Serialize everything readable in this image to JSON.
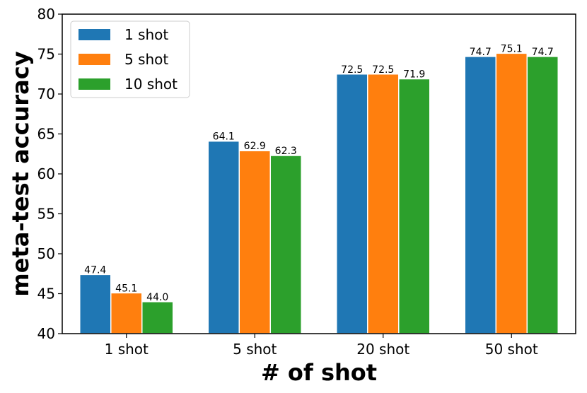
{
  "chart_data": {
    "type": "bar",
    "categories": [
      "1 shot",
      "5 shot",
      "20 shot",
      "50 shot"
    ],
    "series": [
      {
        "name": "1 shot",
        "color": "#1f77b4",
        "values": [
          47.4,
          64.1,
          72.5,
          74.7
        ],
        "labels": [
          "47.4",
          "64.1",
          "72.5",
          "74.7"
        ]
      },
      {
        "name": "5 shot",
        "color": "#ff7f0e",
        "values": [
          45.1,
          62.9,
          72.5,
          75.1
        ],
        "labels": [
          "45.1",
          "62.9",
          "72.5",
          "75.1"
        ]
      },
      {
        "name": "10 shot",
        "color": "#2ca02c",
        "values": [
          44.0,
          62.3,
          71.9,
          74.7
        ],
        "labels": [
          "44.0",
          "62.3",
          "71.9",
          "74.7"
        ]
      }
    ],
    "xlabel": "# of shot",
    "ylabel": "meta-test accuracy",
    "ylim": [
      40,
      80
    ],
    "yticks": [
      "40",
      "45",
      "50",
      "55",
      "60",
      "65",
      "70",
      "75",
      "80"
    ],
    "legend_position": "top-left",
    "grid": false
  }
}
